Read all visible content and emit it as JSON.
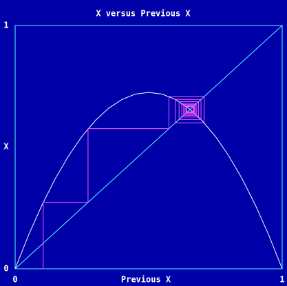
{
  "chart_data": {
    "type": "line",
    "title": "X versus Previous X",
    "x_label": "Previous X",
    "y_label": "X",
    "xlim": [
      0,
      1
    ],
    "ylim": [
      0,
      1
    ],
    "xticks": [
      0,
      1
    ],
    "yticks": [
      0,
      1
    ],
    "frame_color": "#55ffff",
    "series": [
      {
        "color": "#ffffff",
        "x": [
          0,
          0.05,
          0.1,
          0.15,
          0.2,
          0.25,
          0.3,
          0.35,
          0.4,
          0.45,
          0.5,
          0.55,
          0.6,
          0.65,
          0.7,
          0.75,
          0.8,
          0.85,
          0.9,
          0.95,
          1
        ],
        "values": [
          0,
          0.138,
          0.261,
          0.37,
          0.464,
          0.544,
          0.609,
          0.66,
          0.696,
          0.718,
          0.725,
          0.718,
          0.696,
          0.66,
          0.609,
          0.544,
          0.464,
          0.37,
          0.261,
          0.138,
          0
        ]
      },
      {
        "color": "#55ffff",
        "x": [
          0,
          1
        ],
        "values": [
          0,
          1
        ]
      },
      {
        "color": "#ff55ff",
        "x": [
          0.105,
          0.105,
          0.273,
          0.273,
          0.576,
          0.576,
          0.708,
          0.708,
          0.6,
          0.6,
          0.696,
          0.696,
          0.614,
          0.614,
          0.687,
          0.687,
          0.624,
          0.624,
          0.68,
          0.68,
          0.631,
          0.631,
          0.675,
          0.675,
          0.636,
          0.636,
          0.671,
          0.671,
          0.64,
          0.64,
          0.668,
          0.668,
          0.643,
          0.643,
          0.666,
          0.666,
          0.645
        ],
        "values": [
          0,
          0.273,
          0.273,
          0.576,
          0.576,
          0.708,
          0.708,
          0.6,
          0.6,
          0.696,
          0.696,
          0.614,
          0.614,
          0.687,
          0.687,
          0.624,
          0.624,
          0.68,
          0.68,
          0.631,
          0.631,
          0.675,
          0.675,
          0.636,
          0.636,
          0.671,
          0.671,
          0.64,
          0.64,
          0.668,
          0.668,
          0.643,
          0.643,
          0.666,
          0.666,
          0.645,
          0.645
        ]
      }
    ]
  }
}
